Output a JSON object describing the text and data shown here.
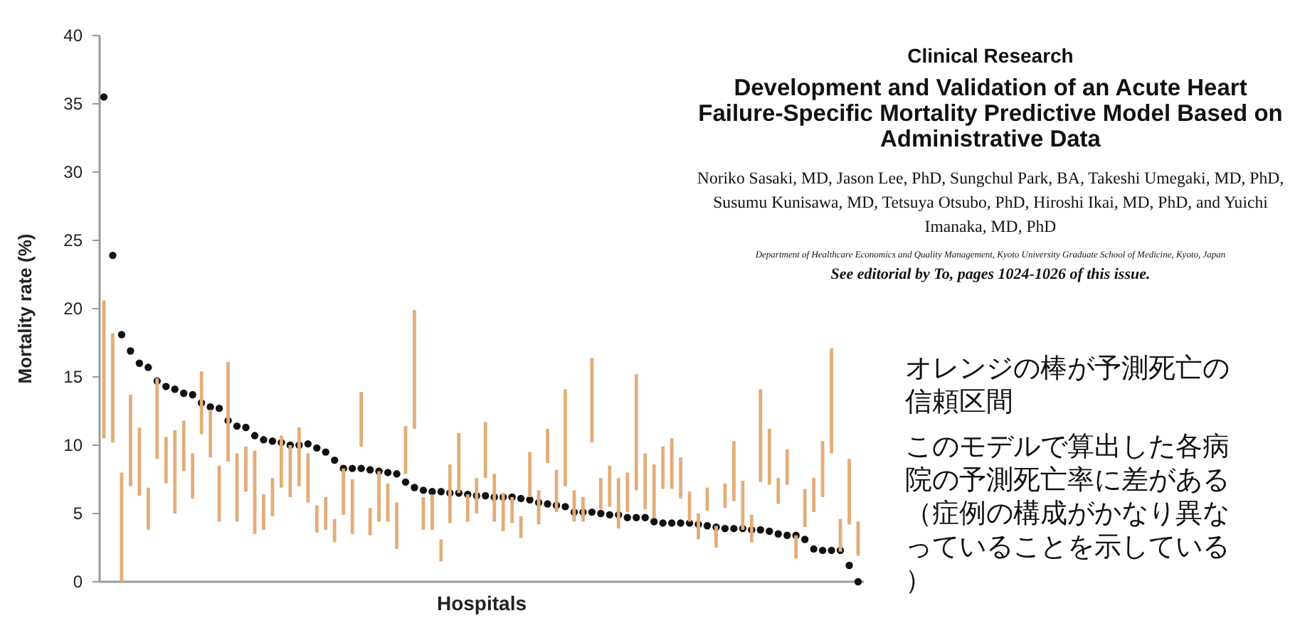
{
  "chart_data": {
    "type": "bar",
    "xlabel": "Hospitals",
    "ylabel": "Mortality rate (%)",
    "categories": [
      null,
      null,
      null,
      null,
      null,
      null,
      null,
      null,
      null,
      null,
      null,
      null,
      null,
      null,
      null,
      null,
      null,
      null,
      null,
      null,
      null,
      null,
      null,
      null,
      null,
      null,
      null,
      null,
      null,
      null,
      null,
      null,
      null,
      null,
      null,
      null,
      null,
      null,
      null,
      null,
      null,
      null,
      null,
      null,
      null,
      null,
      null,
      null,
      null,
      null,
      null,
      null,
      null,
      null,
      null,
      null,
      null,
      null,
      null,
      null,
      null,
      null,
      null,
      null,
      null,
      null,
      null,
      null,
      null,
      null,
      null,
      null,
      null,
      null,
      null,
      null,
      null,
      null,
      null,
      null,
      null,
      null,
      null,
      null,
      null,
      null
    ],
    "ylim": [
      0,
      40
    ],
    "yticks": [
      0,
      5,
      10,
      15,
      20,
      25,
      30,
      35,
      40
    ],
    "tick_labels": "y",
    "grid": false,
    "series": [
      {
        "color": "#e3ad78",
        "base": [
          10.5,
          10.2,
          0,
          7.0,
          6.3,
          3.8,
          9.0,
          7.2,
          5.0,
          8.1,
          6.1,
          10.8,
          9.1,
          4.4,
          8.8,
          4.4,
          6.6,
          3.5,
          3.8,
          4.8,
          6.9,
          6.2,
          7.0,
          5.8,
          3.6,
          3.8,
          2.9,
          4.9,
          3.5,
          9.9,
          3.4,
          4.4,
          4.4,
          2.4,
          7.9,
          11.2,
          3.8,
          3.8,
          1.5,
          4.3,
          6.5,
          4.4,
          5.0,
          7.6,
          4.4,
          3.7,
          4.3,
          3.2,
          6.2,
          4.2,
          8.7,
          5.1,
          7.0,
          4.4,
          4.4,
          10.2,
          5.3,
          5.5,
          3.9,
          5.1,
          6.7,
          5.3,
          4.7,
          6.8,
          6.8,
          6.1,
          4.4,
          3.1,
          5.2,
          2.5,
          5.4,
          5.9,
          3.8,
          2.9,
          7.3,
          7.1,
          5.7,
          7.1,
          1.7,
          4.0,
          5.1,
          6.2,
          9.4,
          2.2,
          4.2,
          1.9
        ],
        "values": [
          10.1,
          8.0,
          8.0,
          6.7,
          5.0,
          3.1,
          5.9,
          3.4,
          6.1,
          3.7,
          3.3,
          4.6,
          3.5,
          4.1,
          7.3,
          5.0,
          3.3,
          6.1,
          2.6,
          2.8,
          3.8,
          3.8,
          4.3,
          3.6,
          2.0,
          2.4,
          1.7,
          3.4,
          4.0,
          4.0,
          2.0,
          3.7,
          2.8,
          3.4,
          3.5,
          8.7,
          2.4,
          2.6,
          1.6,
          4.3,
          4.4,
          2.0,
          2.6,
          4.1,
          3.5,
          2.8,
          1.9,
          1.6,
          3.3,
          2.5,
          2.5,
          3.1,
          7.1,
          2.3,
          1.8,
          6.2,
          2.3,
          3.0,
          3.7,
          2.9,
          8.5,
          4.1,
          3.9,
          3.1,
          3.7,
          3.0,
          2.2,
          1.9,
          1.7,
          1.6,
          1.8,
          4.4,
          3.6,
          2.0,
          6.8,
          4.1,
          1.9,
          2.6,
          1.7,
          2.8,
          2.5,
          4.1,
          7.7,
          2.4,
          4.8,
          2.5
        ]
      },
      {
        "type": "scatter",
        "color": "#111111",
        "marker": "circle",
        "values": [
          35.5,
          23.9,
          18.1,
          16.9,
          16.0,
          15.7,
          14.7,
          14.3,
          14.1,
          13.8,
          13.7,
          13.1,
          12.8,
          12.7,
          11.8,
          11.4,
          11.3,
          10.7,
          10.4,
          10.3,
          10.2,
          10.0,
          10.0,
          10.1,
          9.8,
          9.5,
          8.9,
          8.3,
          8.3,
          8.3,
          8.2,
          8.1,
          8.0,
          7.9,
          7.3,
          6.9,
          6.7,
          6.6,
          6.6,
          6.5,
          6.5,
          6.4,
          6.3,
          6.3,
          6.2,
          6.2,
          6.2,
          6.1,
          6.0,
          5.8,
          5.7,
          5.6,
          5.5,
          5.1,
          5.1,
          5.1,
          5.0,
          4.9,
          4.9,
          4.7,
          4.7,
          4.7,
          4.4,
          4.3,
          4.3,
          4.3,
          4.3,
          4.2,
          4.1,
          4.0,
          3.9,
          3.9,
          3.9,
          3.8,
          3.8,
          3.7,
          3.5,
          3.4,
          3.4,
          3.1,
          2.4,
          2.3,
          2.3,
          2.3,
          1.2,
          0
        ]
      }
    ],
    "annotations": [
      "Clinical Research",
      "Development and Validation of an Acute Heart Failure-Specific Mortality Predictive Model Based on Administrative Data",
      "Noriko Sasaki, MD, Jason Lee, PhD, Sungchul Park, BA, Takeshi Umegaki, MD, PhD, Susumu Kunisawa, MD, Tetsuya Otsubo, PhD, Hiroshi Ikai, MD, PhD, and Yuichi Imanaka, MD, PhD",
      "Department of Healthcare Economics and Quality Management, Kyoto University Graduate School of Medicine, Kyoto, Japan",
      "See editorial by To, pages 1024-1026 of this issue.",
      "オレンジの棒が予測死亡の信頼区間",
      "このモデルで算出した各病院の予測死亡率に差がある（症例の構成がかなり異なっていることを示している）"
    ]
  }
}
